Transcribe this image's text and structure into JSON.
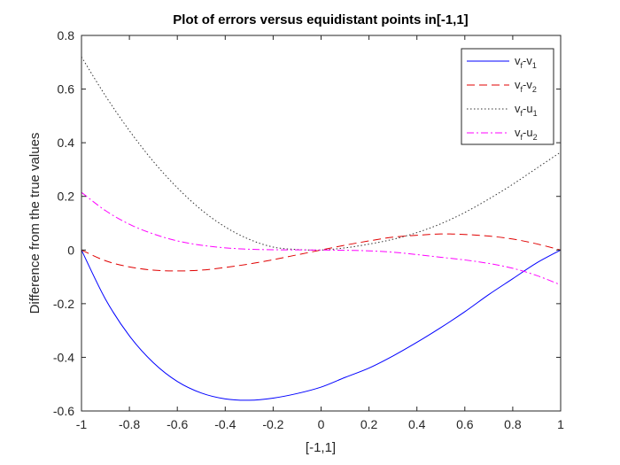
{
  "chart_data": {
    "type": "line",
    "title": "Plot of errors versus equidistant points in[-1,1]",
    "xlabel": "[-1,1]",
    "ylabel": "Difference from the true values",
    "xlim": [
      -1,
      1
    ],
    "ylim": [
      -0.6,
      0.8
    ],
    "xticks": [
      -1,
      -0.8,
      -0.6,
      -0.4,
      -0.2,
      0,
      0.2,
      0.4,
      0.6,
      0.8,
      1
    ],
    "xtick_labels": [
      "-1",
      "-0.8",
      "-0.6",
      "-0.4",
      "-0.2",
      "0",
      "0.2",
      "0.4",
      "0.6",
      "0.8",
      "1"
    ],
    "yticks": [
      -0.6,
      -0.4,
      -0.2,
      0,
      0.2,
      0.4,
      0.6,
      0.8
    ],
    "ytick_labels": [
      "-0.6",
      "-0.4",
      "-0.2",
      "0",
      "0.2",
      "0.4",
      "0.6",
      "0.8"
    ],
    "grid": false,
    "legend_position": "top-right",
    "x": [
      -1,
      -0.9,
      -0.8,
      -0.7,
      -0.6,
      -0.5,
      -0.4,
      -0.3,
      -0.2,
      -0.1,
      0,
      0.1,
      0.2,
      0.3,
      0.4,
      0.5,
      0.6,
      0.7,
      0.8,
      0.9,
      1
    ],
    "series": [
      {
        "name": "v_f-v_1",
        "label_main": [
          "v",
          "-v"
        ],
        "label_sub": [
          "f",
          "1"
        ],
        "color": "#0000ff",
        "dash": "",
        "values": [
          0,
          -0.183,
          -0.32,
          -0.42,
          -0.49,
          -0.533,
          -0.555,
          -0.56,
          -0.552,
          -0.535,
          -0.511,
          -0.475,
          -0.44,
          -0.395,
          -0.344,
          -0.289,
          -0.23,
          -0.166,
          -0.107,
          -0.048,
          0
        ]
      },
      {
        "name": "v_f-v_2",
        "label_main": [
          "v",
          "-v"
        ],
        "label_sub": [
          "f",
          "2"
        ],
        "color": "#e00000",
        "dash": "9,5",
        "values": [
          0,
          -0.04,
          -0.063,
          -0.075,
          -0.078,
          -0.075,
          -0.065,
          -0.052,
          -0.036,
          -0.018,
          0,
          0.018,
          0.034,
          0.048,
          0.055,
          0.06,
          0.058,
          0.052,
          0.041,
          0.023,
          0
        ]
      },
      {
        "name": "v_f-u_1",
        "label_main": [
          "v",
          "-u"
        ],
        "label_sub": [
          "f",
          "1"
        ],
        "color": "#333333",
        "dash": "1.5,2.5",
        "values": [
          0.72,
          0.575,
          0.445,
          0.33,
          0.232,
          0.15,
          0.086,
          0.04,
          0.011,
          0.002,
          0,
          0.008,
          0.022,
          0.04,
          0.065,
          0.098,
          0.14,
          0.19,
          0.245,
          0.305,
          0.365
        ]
      },
      {
        "name": "v_f-u_2",
        "label_main": [
          "v",
          "-u"
        ],
        "label_sub": [
          "f",
          "2"
        ],
        "color": "#ff00ff",
        "dash": "8,3,2,3",
        "values": [
          0.215,
          0.147,
          0.096,
          0.06,
          0.034,
          0.018,
          0.008,
          0.003,
          0.001,
          0.0005,
          0,
          -0.001,
          -0.003,
          -0.008,
          -0.017,
          -0.027,
          -0.037,
          -0.05,
          -0.068,
          -0.095,
          -0.13
        ]
      }
    ]
  }
}
